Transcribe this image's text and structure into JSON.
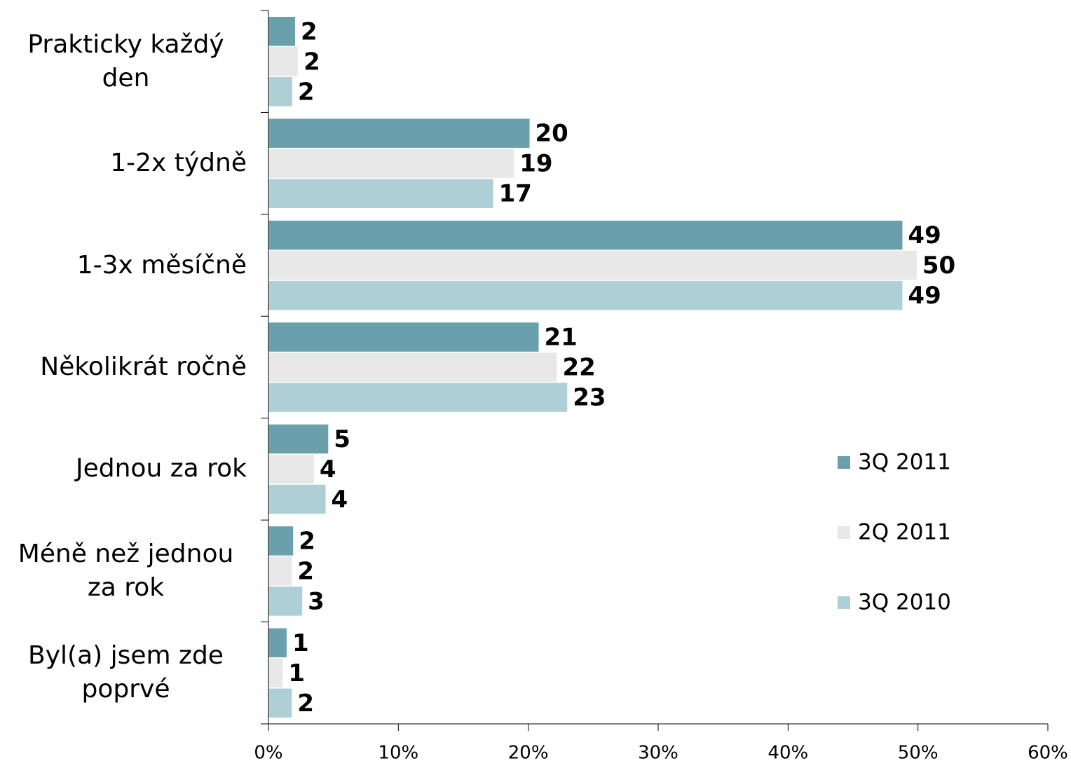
{
  "chart_data": {
    "type": "bar",
    "orientation": "horizontal",
    "categories": [
      "Prakticky každý den",
      "1-2x týdně",
      "1-3x měsíčně",
      "Několikrát ročně",
      "Jednou za rok",
      "Méně než jednou za rok",
      "Byl(a) jsem zde poprvé"
    ],
    "series": [
      {
        "name": "3Q 2011",
        "color": "#6a9fac",
        "values": [
          2.05,
          20.1,
          48.8,
          20.8,
          4.6,
          1.9,
          1.4
        ],
        "value_labels": [
          "2",
          "20",
          "49",
          "21",
          "5",
          "2",
          "1"
        ]
      },
      {
        "name": "2Q 2011",
        "color": "#e8e8e8",
        "values": [
          2.27,
          18.9,
          49.9,
          22.2,
          3.5,
          1.8,
          1.1
        ],
        "value_labels": [
          "2",
          "19",
          "50",
          "22",
          "4",
          "2",
          "1"
        ]
      },
      {
        "name": "3Q 2010",
        "color": "#aecfd6",
        "values": [
          1.83,
          17.3,
          48.8,
          23.0,
          4.4,
          2.6,
          1.8
        ],
        "value_labels": [
          "2",
          "17",
          "49",
          "23",
          "4",
          "3",
          "2"
        ]
      }
    ],
    "xlim": [
      0,
      60
    ],
    "xticks": [
      {
        "value": 0,
        "label": "0%"
      },
      {
        "value": 10,
        "label": "10%"
      },
      {
        "value": 20,
        "label": "20%"
      },
      {
        "value": 30,
        "label": "30%"
      },
      {
        "value": 40,
        "label": "40%"
      },
      {
        "value": 50,
        "label": "50%"
      },
      {
        "value": 60,
        "label": "60%"
      }
    ],
    "legend": "right"
  }
}
